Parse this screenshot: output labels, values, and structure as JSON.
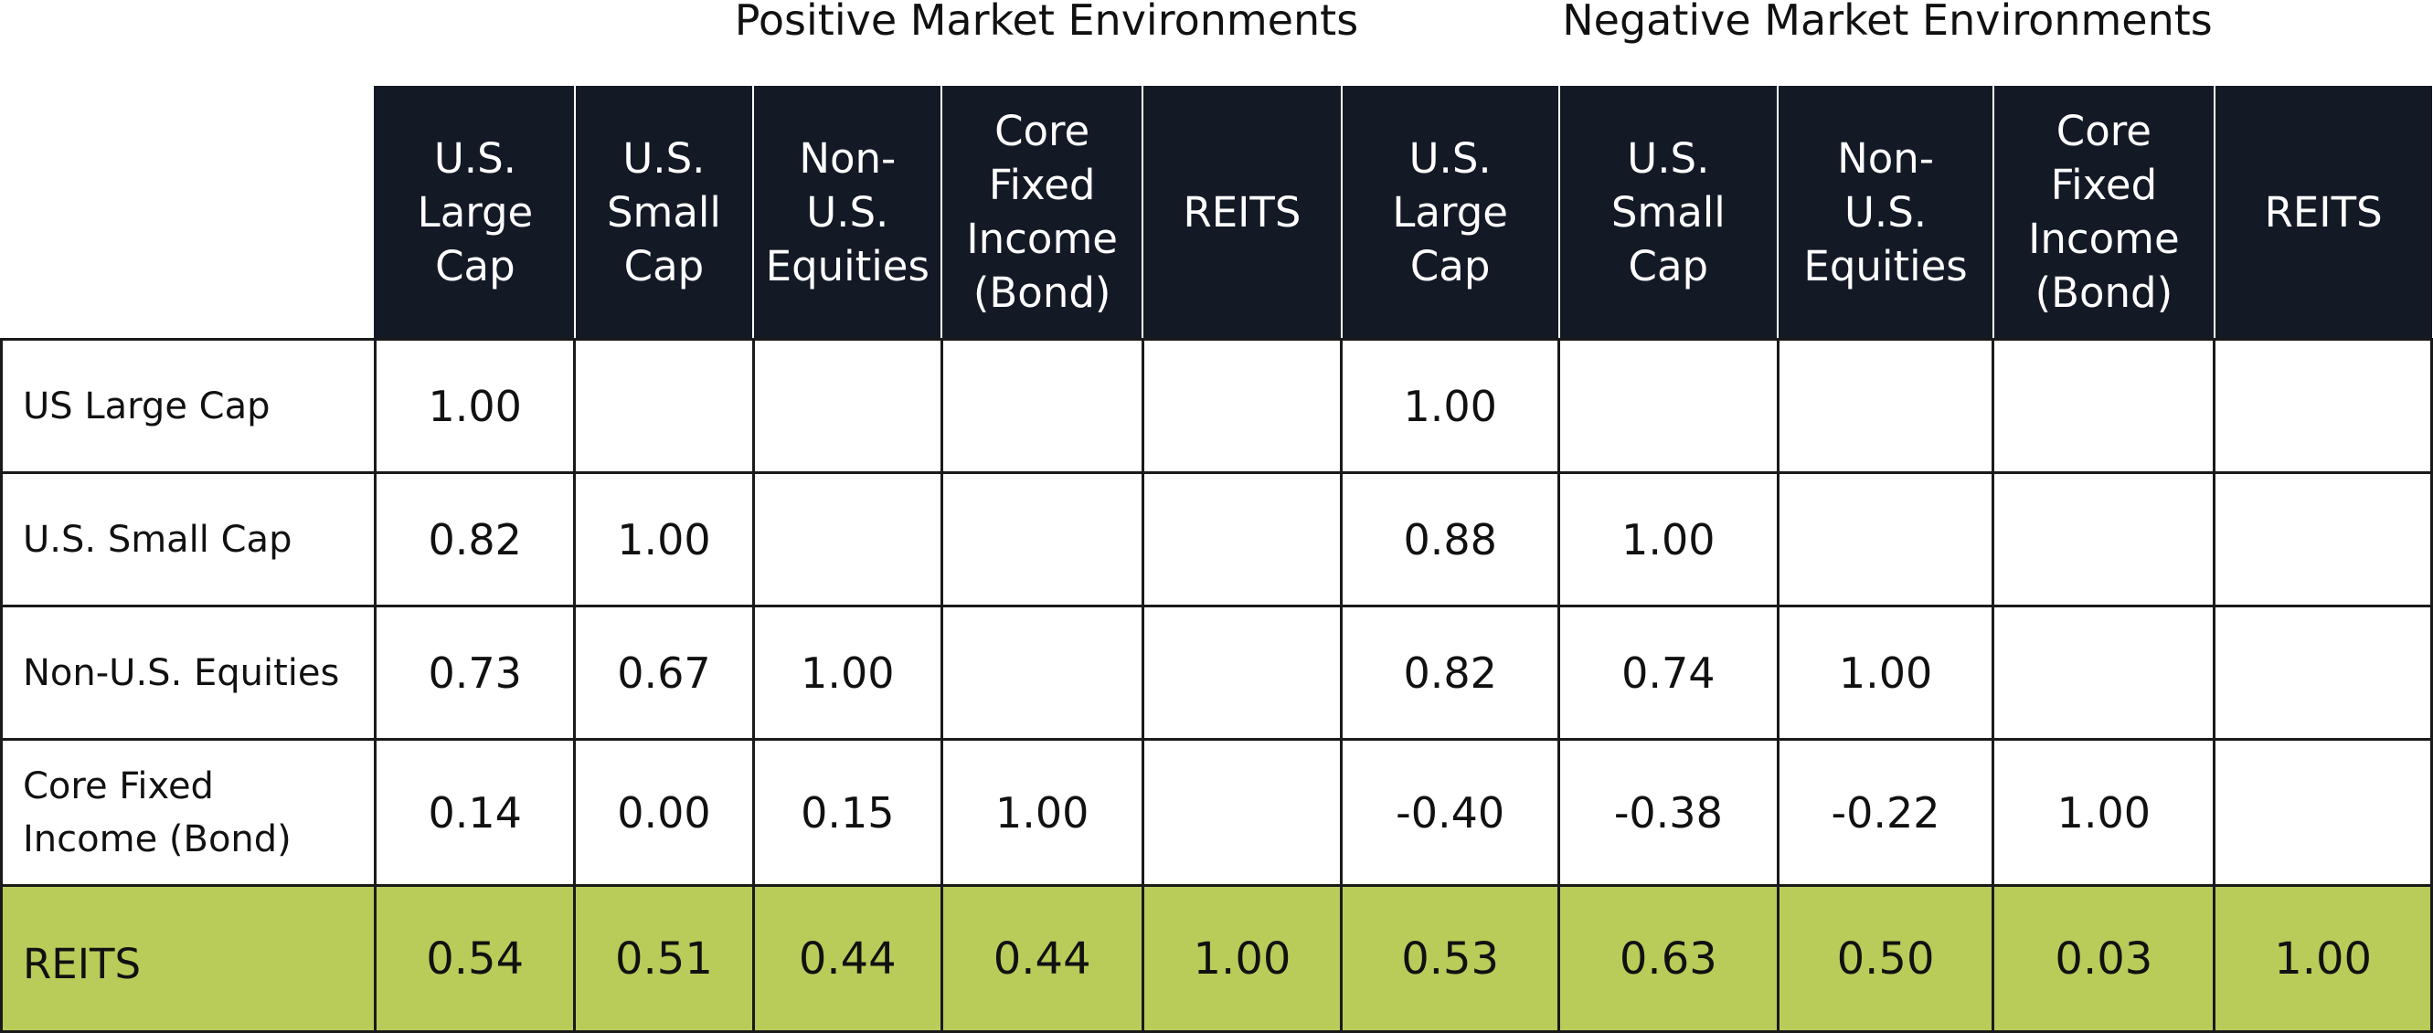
{
  "chart_data": {
    "type": "table",
    "group_titles": [
      "Positive Market Environments",
      "Negative Market Environments"
    ],
    "columns": [
      "U.S.\nLarge\nCap",
      "U.S.\nSmall\nCap",
      "Non-\nU.S.\nEquities",
      "Core\nFixed\nIncome\n(Bond)",
      "REITS",
      "U.S.\nLarge\nCap",
      "U.S.\nSmall\nCap",
      "Non-\nU.S.\nEquities",
      "Core\nFixed\nIncome\n(Bond)",
      "REITS"
    ],
    "rows": [
      {
        "label": "US Large Cap",
        "values": [
          "1.00",
          "",
          "",
          "",
          "",
          "1.00",
          "",
          "",
          "",
          ""
        ]
      },
      {
        "label": "U.S. Small Cap",
        "values": [
          "0.82",
          "1.00",
          "",
          "",
          "",
          "0.88",
          "1.00",
          "",
          "",
          ""
        ]
      },
      {
        "label": "Non-U.S. Equities",
        "values": [
          "0.73",
          "0.67",
          "1.00",
          "",
          "",
          "0.82",
          "0.74",
          "1.00",
          "",
          ""
        ]
      },
      {
        "label": "Core Fixed\nIncome (Bond)",
        "values": [
          "0.14",
          "0.00",
          "0.15",
          "1.00",
          "",
          "-0.40",
          "-0.38",
          "-0.22",
          "1.00",
          ""
        ]
      },
      {
        "label": "REITS",
        "values": [
          "0.54",
          "0.51",
          "0.44",
          "0.44",
          "1.00",
          "0.53",
          "0.63",
          "0.50",
          "0.03",
          "1.00"
        ]
      }
    ],
    "highlight_row": 4,
    "colors": {
      "header_bg": "#131a26",
      "header_text": "#ffffff",
      "highlight_bg": "#b9cc59",
      "border": "#1a1a1a"
    }
  }
}
